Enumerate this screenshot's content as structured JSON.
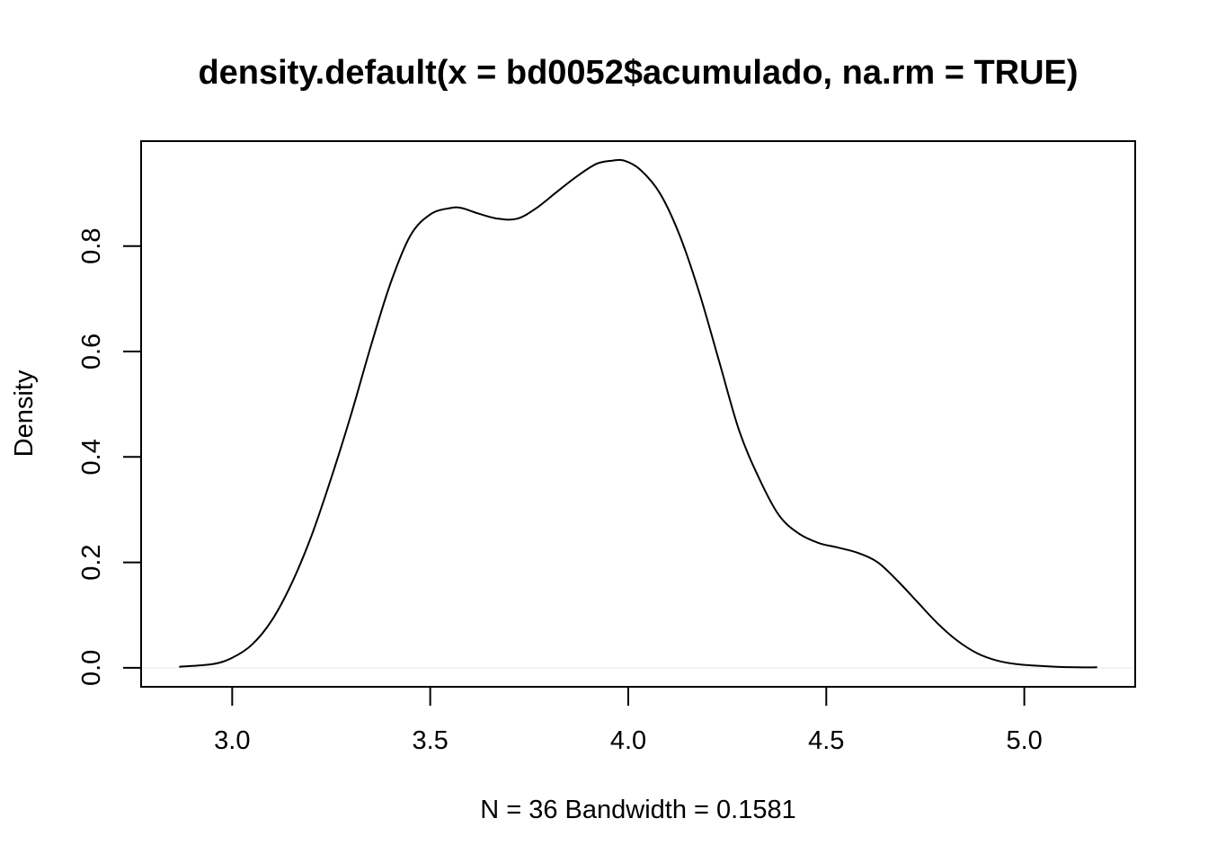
{
  "chart_data": {
    "type": "line",
    "title": "density.default(x = bd0052$acumulado, na.rm = TRUE)",
    "xlabel": "N = 36   Bandwidth = 0.1581",
    "ylabel": "Density",
    "xlim": [
      2.77,
      5.28
    ],
    "ylim": [
      -0.036,
      0.999
    ],
    "x_ticks": [
      "3.0",
      "3.5",
      "4.0",
      "4.5",
      "5.0"
    ],
    "y_ticks": [
      "0.0",
      "0.2",
      "0.4",
      "0.6",
      "0.8"
    ],
    "baseline": 0,
    "grid": false,
    "legend": "none",
    "colors": {
      "line": "#000000",
      "baseline": "#eeeeee",
      "frame": "#000000"
    },
    "series": [
      {
        "x": [
          2.866,
          2.95,
          3.0,
          3.05,
          3.1,
          3.15,
          3.2,
          3.25,
          3.3,
          3.35,
          3.4,
          3.45,
          3.5,
          3.55,
          3.58,
          3.62,
          3.67,
          3.72,
          3.77,
          3.82,
          3.87,
          3.92,
          3.96,
          3.99,
          4.03,
          4.08,
          4.13,
          4.18,
          4.23,
          4.28,
          4.33,
          4.38,
          4.43,
          4.48,
          4.53,
          4.58,
          4.63,
          4.68,
          4.73,
          4.78,
          4.83,
          4.88,
          4.93,
          4.98,
          5.03,
          5.08,
          5.13,
          5.184
        ],
        "y": [
          0.002,
          0.007,
          0.019,
          0.044,
          0.09,
          0.16,
          0.25,
          0.36,
          0.48,
          0.61,
          0.73,
          0.82,
          0.86,
          0.872,
          0.872,
          0.862,
          0.852,
          0.852,
          0.873,
          0.903,
          0.932,
          0.956,
          0.962,
          0.962,
          0.945,
          0.9,
          0.82,
          0.71,
          0.58,
          0.45,
          0.36,
          0.29,
          0.255,
          0.237,
          0.228,
          0.218,
          0.2,
          0.165,
          0.125,
          0.085,
          0.052,
          0.028,
          0.014,
          0.007,
          0.004,
          0.002,
          0.001,
          0.001
        ]
      }
    ]
  }
}
